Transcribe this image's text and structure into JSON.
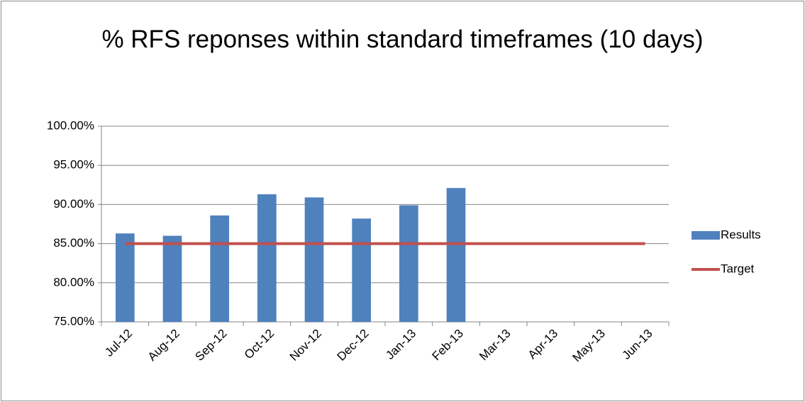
{
  "chart_data": {
    "type": "bar",
    "title": "% RFS reponses within standard timeframes (10 days)",
    "categories": [
      "Jul-12",
      "Aug-12",
      "Sep-12",
      "Oct-12",
      "Nov-12",
      "Dec-12",
      "Jan-13",
      "Feb-13",
      "Mar-13",
      "Apr-13",
      "May-13",
      "Jun-13"
    ],
    "series": [
      {
        "name": "Results",
        "type": "bar",
        "color": "#4f81bd",
        "values": [
          86.3,
          86.0,
          88.6,
          91.3,
          90.9,
          88.2,
          89.9,
          92.1,
          null,
          null,
          null,
          null
        ]
      },
      {
        "name": "Target",
        "type": "line",
        "color": "#c0504d",
        "values": [
          85,
          85,
          85,
          85,
          85,
          85,
          85,
          85,
          85,
          85,
          85,
          85
        ]
      }
    ],
    "ylim": [
      75,
      100
    ],
    "yticks": [
      {
        "value": 75,
        "label": "75.00%"
      },
      {
        "value": 80,
        "label": "80.00%"
      },
      {
        "value": 85,
        "label": "85.00%"
      },
      {
        "value": 90,
        "label": "90.00%"
      },
      {
        "value": 95,
        "label": "95.00%"
      },
      {
        "value": 100,
        "label": "100.00%"
      }
    ],
    "grid": true,
    "legend": "right"
  }
}
